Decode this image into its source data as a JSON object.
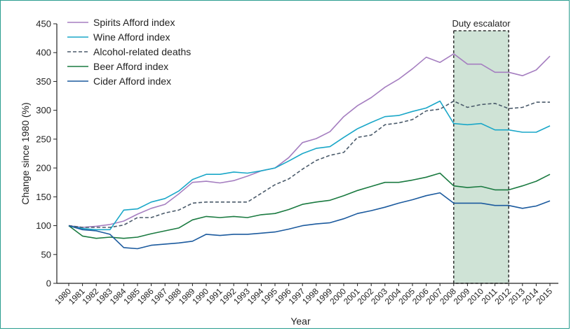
{
  "chart_data": {
    "type": "line",
    "title": "",
    "xlabel": "Year",
    "ylabel": "Change since 1980 (%)",
    "ylim": [
      0,
      450
    ],
    "yticks": [
      0,
      50,
      100,
      150,
      200,
      250,
      300,
      350,
      400,
      450
    ],
    "x": [
      "1980",
      "1981",
      "1982",
      "1983",
      "1984",
      "1985",
      "1986",
      "1987",
      "1988",
      "1989",
      "1990",
      "1991",
      "1992",
      "1993",
      "1994",
      "1995",
      "1996",
      "1997",
      "1998",
      "1999",
      "2000",
      "2001",
      "2002",
      "2003",
      "2004",
      "2005",
      "2006",
      "2007",
      "2008",
      "2009",
      "2010",
      "2011",
      "2012",
      "2013",
      "2014",
      "2015"
    ],
    "legend_position": "top-left",
    "grid": false,
    "annotation": {
      "label": "Duty escalator",
      "from": "2008",
      "to": "2012",
      "color": "#cfe3d6"
    },
    "series": [
      {
        "name": "Spirits Afford index",
        "color": "#a57ec0",
        "dash": false,
        "values": [
          100,
          97,
          99,
          102,
          108,
          120,
          130,
          137,
          155,
          175,
          177,
          174,
          178,
          186,
          195,
          200,
          218,
          244,
          251,
          263,
          289,
          308,
          322,
          340,
          354,
          372,
          392,
          383,
          398,
          380,
          380,
          366,
          366,
          360,
          370,
          394
        ]
      },
      {
        "name": "Wine Afford index",
        "color": "#1aa7c8",
        "dash": false,
        "values": [
          100,
          95,
          93,
          93,
          127,
          129,
          141,
          147,
          160,
          180,
          189,
          189,
          193,
          191,
          195,
          200,
          212,
          225,
          234,
          237,
          253,
          268,
          279,
          289,
          291,
          298,
          304,
          316,
          277,
          275,
          277,
          266,
          266,
          262,
          262,
          273
        ]
      },
      {
        "name": "Alcohol-related deaths",
        "color": "#4a5a6a",
        "dash": true,
        "values": [
          100,
          97,
          97,
          97,
          101,
          114,
          114,
          122,
          127,
          139,
          141,
          141,
          141,
          141,
          156,
          171,
          181,
          198,
          213,
          222,
          227,
          253,
          257,
          275,
          278,
          284,
          299,
          302,
          316,
          305,
          310,
          312,
          303,
          305,
          314,
          314
        ]
      },
      {
        "name": "Beer Afford index",
        "color": "#1a7a40",
        "dash": false,
        "values": [
          100,
          82,
          78,
          80,
          78,
          80,
          86,
          91,
          96,
          110,
          116,
          114,
          116,
          114,
          119,
          121,
          128,
          137,
          141,
          144,
          152,
          161,
          168,
          175,
          175,
          179,
          184,
          191,
          169,
          166,
          168,
          162,
          162,
          169,
          177,
          189
        ]
      },
      {
        "name": "Cider Afford index",
        "color": "#1b5a9e",
        "dash": false,
        "values": [
          100,
          93,
          91,
          85,
          62,
          60,
          66,
          68,
          70,
          73,
          85,
          83,
          85,
          85,
          87,
          89,
          94,
          100,
          103,
          105,
          112,
          121,
          126,
          132,
          139,
          145,
          152,
          157,
          139,
          139,
          139,
          135,
          135,
          130,
          134,
          143
        ]
      }
    ]
  }
}
